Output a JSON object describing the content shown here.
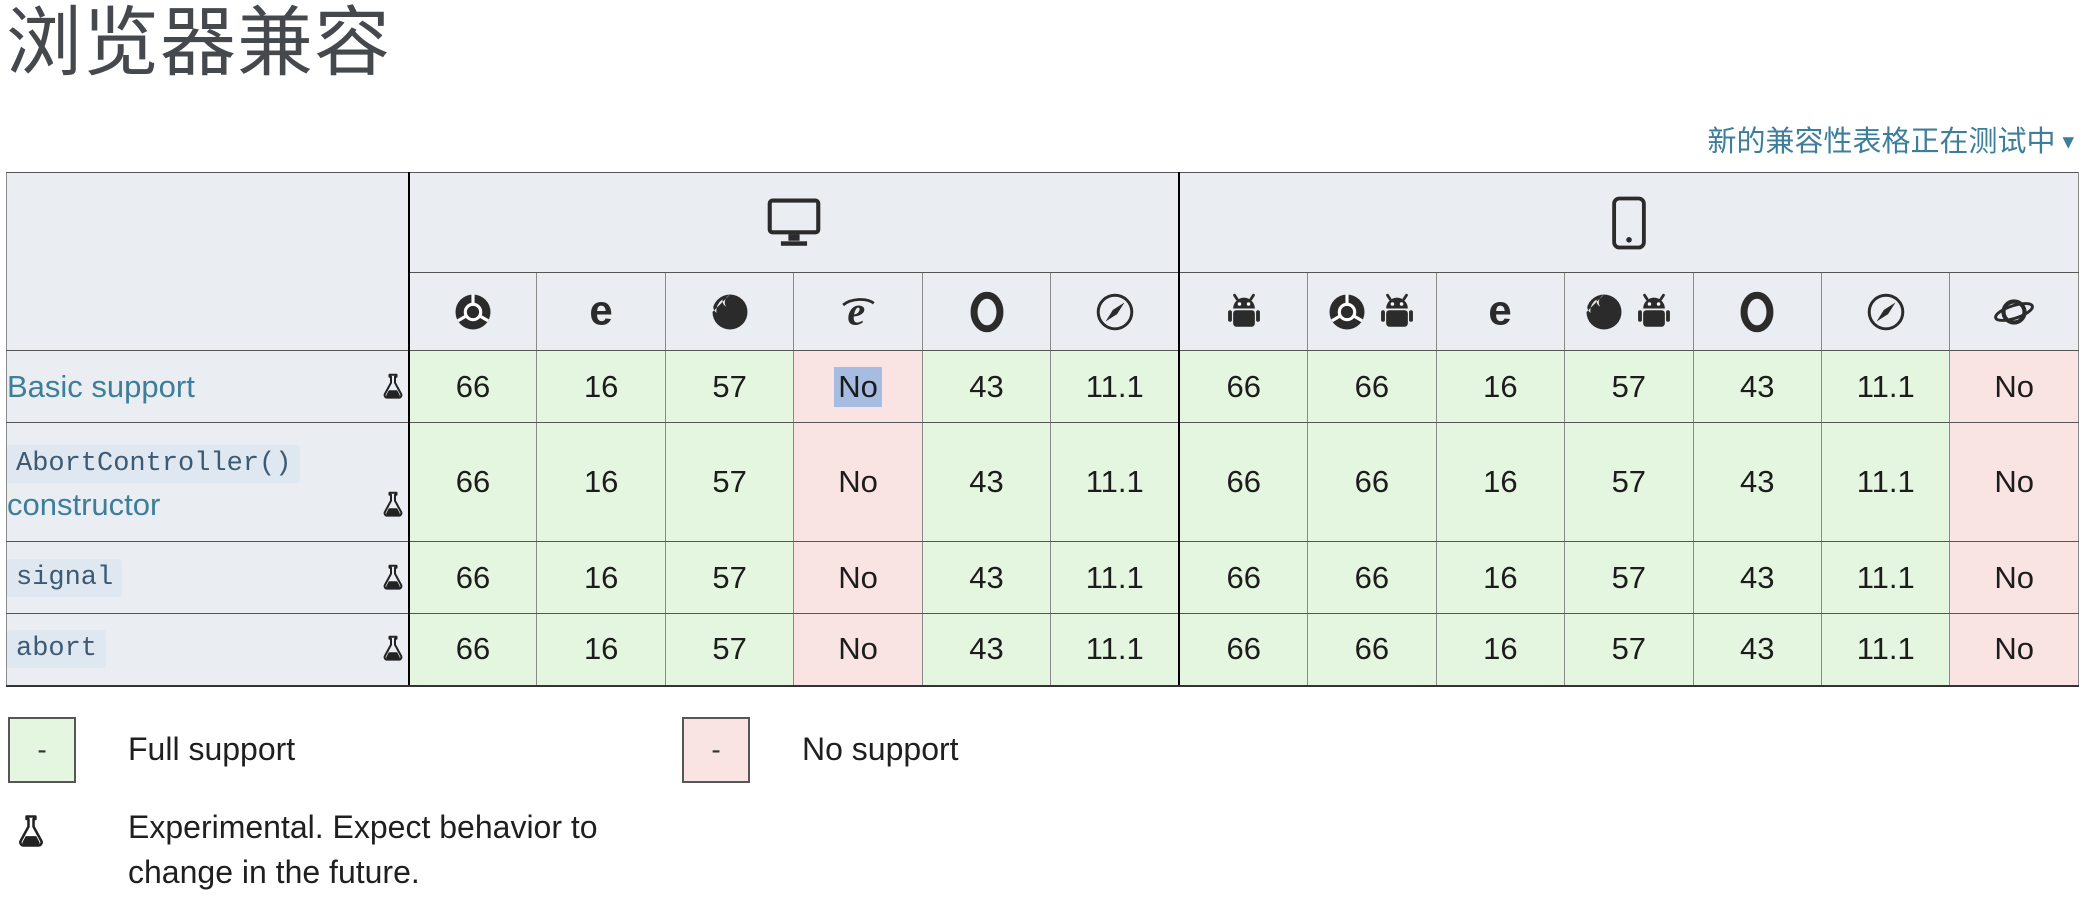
{
  "page": {
    "heading": "浏览器兼容"
  },
  "beta_link": {
    "label": "新的兼容性表格正在测试中",
    "arrow": "▾"
  },
  "colors": {
    "link": "#3d7e9a",
    "full_bg": "#e5f6e0",
    "no_bg": "#f9e3e3",
    "cross": "#eab9b9",
    "header_bg": "#eaeef2",
    "selection": "#a6bce0",
    "code_bg": "#dfe7f0",
    "code_text": "#3c5a74",
    "label_text": "#3d7e9a"
  },
  "table": {
    "device_groups": [
      {
        "icon": "desktop",
        "span": 6
      },
      {
        "icon": "mobile",
        "span": 7
      }
    ],
    "browser_columns": [
      {
        "icons": [
          "chrome"
        ]
      },
      {
        "icons": [
          "edge"
        ]
      },
      {
        "icons": [
          "firefox"
        ]
      },
      {
        "icons": [
          "ie"
        ]
      },
      {
        "icons": [
          "opera"
        ]
      },
      {
        "icons": [
          "safari"
        ]
      },
      {
        "icons": [
          "android"
        ]
      },
      {
        "icons": [
          "chrome",
          "android"
        ]
      },
      {
        "icons": [
          "edge"
        ]
      },
      {
        "icons": [
          "firefox",
          "android"
        ]
      },
      {
        "icons": [
          "opera"
        ]
      },
      {
        "icons": [
          "safari"
        ]
      },
      {
        "icons": [
          "samsung"
        ]
      }
    ],
    "rows": [
      {
        "label": "Basic support",
        "label_style": "plain",
        "experimental": true,
        "cells": [
          {
            "text": "66",
            "support": "full"
          },
          {
            "text": "16",
            "support": "full"
          },
          {
            "text": "57",
            "support": "full"
          },
          {
            "text": "No",
            "support": "no",
            "cross": false,
            "selected": true
          },
          {
            "text": "43",
            "support": "full"
          },
          {
            "text": "11.1",
            "support": "full"
          },
          {
            "text": "66",
            "support": "full"
          },
          {
            "text": "66",
            "support": "full"
          },
          {
            "text": "16",
            "support": "full"
          },
          {
            "text": "57",
            "support": "full"
          },
          {
            "text": "43",
            "support": "full"
          },
          {
            "text": "11.1",
            "support": "full"
          },
          {
            "text": "No",
            "support": "no",
            "cross": true
          }
        ]
      },
      {
        "label": "AbortController()",
        "label_suffix": "constructor",
        "label_style": "code",
        "experimental": true,
        "cells": [
          {
            "text": "66",
            "support": "full"
          },
          {
            "text": "16",
            "support": "full"
          },
          {
            "text": "57",
            "support": "full"
          },
          {
            "text": "No",
            "support": "no",
            "cross": true
          },
          {
            "text": "43",
            "support": "full"
          },
          {
            "text": "11.1",
            "support": "full"
          },
          {
            "text": "66",
            "support": "full"
          },
          {
            "text": "66",
            "support": "full"
          },
          {
            "text": "16",
            "support": "full"
          },
          {
            "text": "57",
            "support": "full"
          },
          {
            "text": "43",
            "support": "full"
          },
          {
            "text": "11.1",
            "support": "full"
          },
          {
            "text": "No",
            "support": "no",
            "cross": true
          }
        ]
      },
      {
        "label": "signal",
        "label_style": "code",
        "experimental": true,
        "cells": [
          {
            "text": "66",
            "support": "full"
          },
          {
            "text": "16",
            "support": "full"
          },
          {
            "text": "57",
            "support": "full"
          },
          {
            "text": "No",
            "support": "no",
            "cross": true
          },
          {
            "text": "43",
            "support": "full"
          },
          {
            "text": "11.1",
            "support": "full"
          },
          {
            "text": "66",
            "support": "full"
          },
          {
            "text": "66",
            "support": "full"
          },
          {
            "text": "16",
            "support": "full"
          },
          {
            "text": "57",
            "support": "full"
          },
          {
            "text": "43",
            "support": "full"
          },
          {
            "text": "11.1",
            "support": "full"
          },
          {
            "text": "No",
            "support": "no",
            "cross": true
          }
        ]
      },
      {
        "label": "abort",
        "label_style": "code",
        "experimental": true,
        "cells": [
          {
            "text": "66",
            "support": "full"
          },
          {
            "text": "16",
            "support": "full"
          },
          {
            "text": "57",
            "support": "full"
          },
          {
            "text": "No",
            "support": "no",
            "cross": true
          },
          {
            "text": "43",
            "support": "full"
          },
          {
            "text": "11.1",
            "support": "full"
          },
          {
            "text": "66",
            "support": "full"
          },
          {
            "text": "66",
            "support": "full"
          },
          {
            "text": "16",
            "support": "full"
          },
          {
            "text": "57",
            "support": "full"
          },
          {
            "text": "43",
            "support": "full"
          },
          {
            "text": "11.1",
            "support": "full"
          },
          {
            "text": "No",
            "support": "no",
            "cross": true
          }
        ]
      }
    ]
  },
  "legend": {
    "full": {
      "box_mark": "-",
      "label": "Full support"
    },
    "no": {
      "box_mark": "-",
      "label": "No support"
    },
    "experimental": {
      "label": "Experimental. Expect behavior to change in the future."
    }
  }
}
